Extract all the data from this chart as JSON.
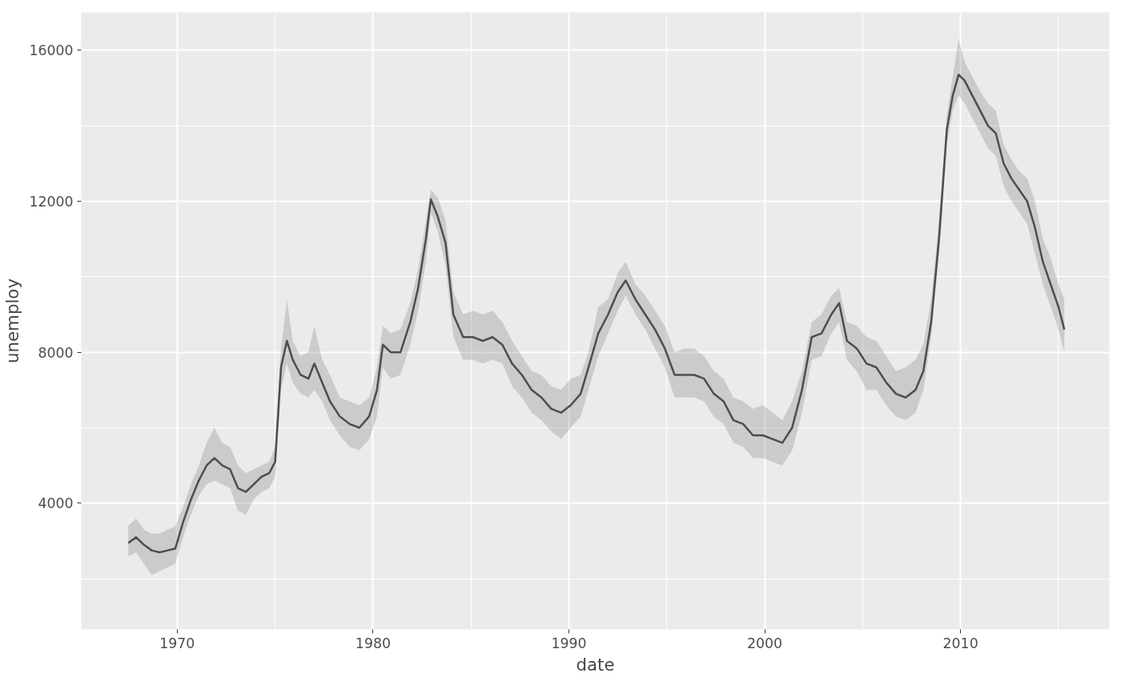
{
  "chart_data": {
    "type": "line",
    "xlabel": "date",
    "ylabel": "unemploy",
    "xlim": [
      1965.1,
      2017.6
    ],
    "ylim": [
      660,
      17000
    ],
    "xticks": [
      1970,
      1980,
      1990,
      2000,
      2010
    ],
    "yticks": [
      4000,
      8000,
      12000,
      16000
    ],
    "grid": true,
    "marker": "none",
    "line_style": "solid",
    "series": [
      {
        "color": "#4d4d4d",
        "x": [
          1967.5,
          1967.9,
          1968.3,
          1968.7,
          1969.1,
          1969.5,
          1969.9,
          1970.3,
          1970.7,
          1971.1,
          1971.5,
          1971.9,
          1972.3,
          1972.7,
          1973.1,
          1973.5,
          1973.9,
          1974.3,
          1974.7,
          1975.0,
          1975.3,
          1975.6,
          1975.9,
          1976.3,
          1976.7,
          1977.0,
          1977.4,
          1977.8,
          1978.3,
          1978.8,
          1979.3,
          1979.8,
          1980.2,
          1980.5,
          1980.9,
          1981.4,
          1981.9,
          1982.3,
          1982.7,
          1982.95,
          1983.3,
          1983.7,
          1984.1,
          1984.6,
          1985.1,
          1985.6,
          1986.1,
          1986.6,
          1987.1,
          1987.6,
          1988.1,
          1988.6,
          1989.1,
          1989.6,
          1990.1,
          1990.6,
          1991.0,
          1991.5,
          1992.0,
          1992.5,
          1992.9,
          1993.4,
          1993.9,
          1994.4,
          1994.9,
          1995.4,
          1995.9,
          1996.4,
          1996.9,
          1997.4,
          1997.9,
          1998.4,
          1998.9,
          1999.4,
          1999.9,
          2000.4,
          2000.9,
          2001.4,
          2001.9,
          2002.4,
          2002.9,
          2003.4,
          2003.8,
          2004.2,
          2004.7,
          2005.2,
          2005.7,
          2006.2,
          2006.7,
          2007.2,
          2007.7,
          2008.1,
          2008.5,
          2008.9,
          2009.3,
          2009.6,
          2009.9,
          2010.2,
          2010.6,
          2011.0,
          2011.4,
          2011.8,
          2012.2,
          2012.6,
          2013.0,
          2013.4,
          2013.8,
          2014.2,
          2014.6,
          2015.0,
          2015.3
        ],
        "values": [
          2950,
          3100,
          2900,
          2750,
          2700,
          2750,
          2800,
          3500,
          4100,
          4600,
          5000,
          5200,
          5000,
          4900,
          4400,
          4300,
          4500,
          4700,
          4800,
          5100,
          7600,
          8300,
          7800,
          7400,
          7300,
          7700,
          7200,
          6700,
          6300,
          6100,
          6000,
          6300,
          7000,
          8200,
          8000,
          8000,
          8800,
          9700,
          11000,
          12050,
          11600,
          10900,
          9000,
          8400,
          8400,
          8300,
          8400,
          8200,
          7700,
          7400,
          7000,
          6800,
          6500,
          6400,
          6600,
          6900,
          7600,
          8500,
          9000,
          9600,
          9900,
          9400,
          9000,
          8600,
          8100,
          7400,
          7400,
          7400,
          7300,
          6900,
          6700,
          6200,
          6100,
          5800,
          5800,
          5700,
          5600,
          6000,
          7000,
          8400,
          8500,
          9000,
          9300,
          8300,
          8100,
          7700,
          7600,
          7200,
          6900,
          6800,
          7000,
          7500,
          8800,
          11000,
          13900,
          14800,
          15350,
          15200,
          14800,
          14400,
          14000,
          13800,
          13000,
          12600,
          12300,
          12000,
          11300,
          10400,
          9800,
          9200,
          8600
        ],
        "lower": [
          2600,
          2700,
          2400,
          2100,
          2200,
          2300,
          2400,
          3100,
          3700,
          4200,
          4500,
          4600,
          4500,
          4400,
          3800,
          3700,
          4100,
          4300,
          4400,
          4700,
          7000,
          7700,
          7200,
          6900,
          6800,
          7000,
          6700,
          6200,
          5800,
          5500,
          5400,
          5700,
          6300,
          7600,
          7300,
          7400,
          8200,
          9100,
          10400,
          11700,
          11200,
          10300,
          8400,
          7800,
          7800,
          7700,
          7800,
          7700,
          7100,
          6800,
          6400,
          6200,
          5900,
          5700,
          6000,
          6300,
          7000,
          7900,
          8500,
          9100,
          9500,
          9000,
          8600,
          8100,
          7600,
          6800,
          6800,
          6800,
          6700,
          6300,
          6100,
          5600,
          5500,
          5200,
          5200,
          5100,
          5000,
          5400,
          6400,
          7800,
          7900,
          8500,
          8800,
          7800,
          7500,
          7000,
          7000,
          6600,
          6300,
          6200,
          6400,
          7000,
          8400,
          10600,
          13500,
          14400,
          14800,
          14600,
          14200,
          13800,
          13400,
          13200,
          12400,
          12000,
          11700,
          11400,
          10600,
          9800,
          9200,
          8600,
          8000
        ],
        "upper": [
          3400,
          3600,
          3300,
          3200,
          3200,
          3300,
          3400,
          3900,
          4500,
          5000,
          5600,
          6000,
          5600,
          5500,
          5000,
          4800,
          4900,
          5000,
          5100,
          5500,
          8100,
          9400,
          8300,
          7900,
          8000,
          8700,
          7800,
          7400,
          6800,
          6700,
          6600,
          6800,
          7600,
          8700,
          8500,
          8600,
          9300,
          10200,
          11500,
          12300,
          12100,
          11500,
          9600,
          9000,
          9100,
          9000,
          9100,
          8800,
          8300,
          7900,
          7500,
          7400,
          7100,
          7000,
          7300,
          7400,
          8000,
          9200,
          9400,
          10100,
          10400,
          9800,
          9500,
          9100,
          8700,
          8000,
          8100,
          8100,
          7900,
          7500,
          7300,
          6800,
          6700,
          6500,
          6600,
          6400,
          6200,
          6700,
          7500,
          8800,
          9000,
          9500,
          9700,
          8800,
          8700,
          8400,
          8300,
          7900,
          7500,
          7600,
          7800,
          8200,
          9400,
          11500,
          14300,
          15300,
          16300,
          15700,
          15300,
          14900,
          14600,
          14400,
          13500,
          13100,
          12800,
          12600,
          12000,
          11000,
          10500,
          9800,
          9400
        ]
      }
    ]
  }
}
